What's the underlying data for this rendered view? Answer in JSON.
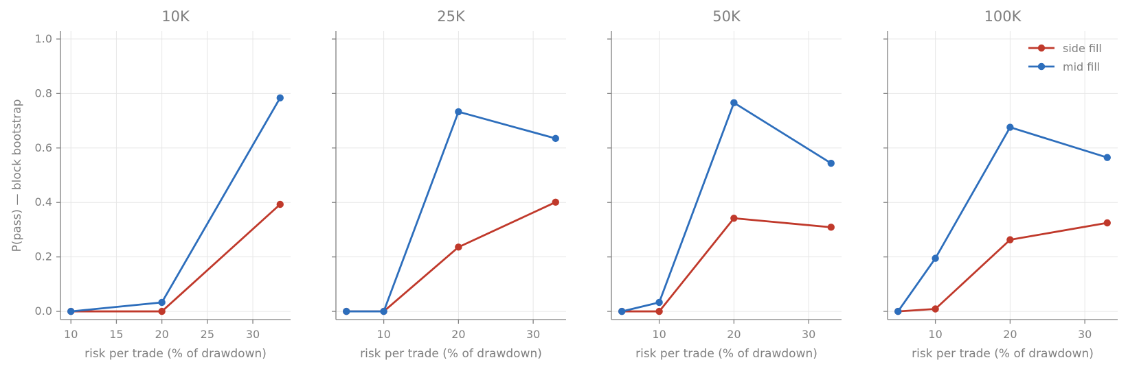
{
  "chart_data": {
    "type": "line",
    "ylabel": "P(pass) — block bootstrap",
    "ylim": [
      -0.03,
      1.03
    ],
    "yticks": [
      0.0,
      0.2,
      0.4,
      0.6,
      0.8,
      1.0
    ],
    "yticklabels": [
      "0.0",
      "0.2",
      "0.4",
      "0.6",
      "0.8",
      "1.0"
    ],
    "grid": true,
    "legend": {
      "placement": "top-right of last panel",
      "entries": [
        "side fill",
        "mid fill"
      ]
    },
    "colors": {
      "side fill": "#c0392b",
      "mid fill": "#2d6ebc"
    },
    "panels": [
      {
        "title": "10K",
        "xlabel": "risk per trade (% of drawdown)",
        "xlim": [
          8.85,
          34.15
        ],
        "xticks": [
          10,
          15,
          20,
          25,
          30
        ],
        "xticklabels": [
          "10",
          "15",
          "20",
          "25",
          "30"
        ],
        "series": [
          {
            "name": "side fill",
            "x": [
              10,
              20,
              33
            ],
            "y": [
              0.0,
              0.0,
              0.393
            ]
          },
          {
            "name": "mid fill",
            "x": [
              10,
              20,
              33
            ],
            "y": [
              0.0,
              0.033,
              0.784
            ]
          }
        ]
      },
      {
        "title": "25K",
        "xlabel": "risk per trade (% of drawdown)",
        "xlim": [
          3.6,
          34.4
        ],
        "xticks": [
          10,
          20,
          30
        ],
        "xticklabels": [
          "10",
          "20",
          "30"
        ],
        "series": [
          {
            "name": "side fill",
            "x": [
              5,
              10,
              20,
              33
            ],
            "y": [
              0.0,
              0.0,
              0.236,
              0.401
            ]
          },
          {
            "name": "mid fill",
            "x": [
              5,
              10,
              20,
              33
            ],
            "y": [
              0.0,
              0.0,
              0.733,
              0.635
            ]
          }
        ]
      },
      {
        "title": "50K",
        "xlabel": "risk per trade (% of drawdown)",
        "xlim": [
          3.6,
          34.4
        ],
        "xticks": [
          10,
          20,
          30
        ],
        "xticklabels": [
          "10",
          "20",
          "30"
        ],
        "series": [
          {
            "name": "side fill",
            "x": [
              5,
              10,
              20,
              33
            ],
            "y": [
              0.0,
              0.0,
              0.342,
              0.309
            ]
          },
          {
            "name": "mid fill",
            "x": [
              5,
              10,
              20,
              33
            ],
            "y": [
              0.0,
              0.033,
              0.766,
              0.544
            ]
          }
        ]
      },
      {
        "title": "100K",
        "xlabel": "risk per trade (% of drawdown)",
        "xlim": [
          3.6,
          34.4
        ],
        "xticks": [
          10,
          20,
          30
        ],
        "xticklabels": [
          "10",
          "20",
          "30"
        ],
        "series": [
          {
            "name": "side fill",
            "x": [
              5,
              10,
              20,
              33
            ],
            "y": [
              0.0,
              0.009,
              0.263,
              0.325
            ]
          },
          {
            "name": "mid fill",
            "x": [
              5,
              10,
              20,
              33
            ],
            "y": [
              0.0,
              0.195,
              0.676,
              0.565
            ]
          }
        ]
      }
    ]
  }
}
